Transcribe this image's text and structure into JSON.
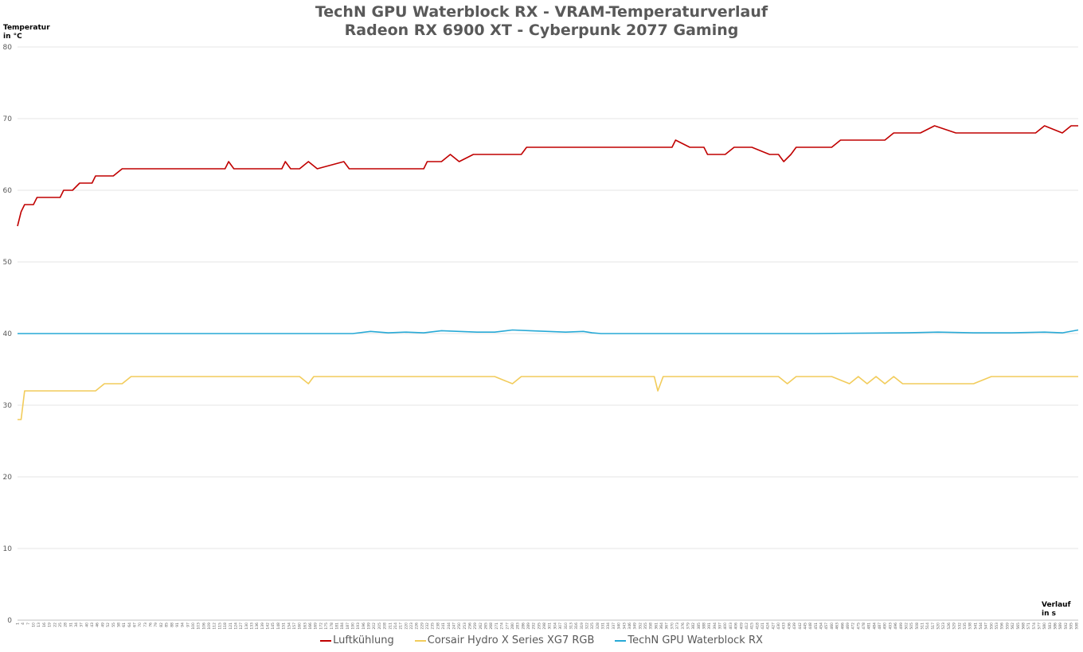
{
  "chart_data": {
    "type": "line",
    "title": "TechN GPU Waterblock RX - VRAM-Temperaturverlauf",
    "subtitle": "Radeon RX 6900 XT - Cyberpunk 2077 Gaming",
    "ylabel_line1": "Temperatur",
    "ylabel_line2": "in °C",
    "xlabel_line1": "Verlauf",
    "xlabel_line2": "in s",
    "ylim": [
      0,
      80
    ],
    "yticks": [
      "0",
      "10",
      "20",
      "30",
      "40",
      "50",
      "60",
      "70",
      "80"
    ],
    "xlim": [
      1,
      599
    ],
    "xtick_start": 1,
    "xtick_step": 3,
    "grid": true,
    "legend_position": "bottom",
    "series": [
      {
        "name": "Luftkühlung",
        "color": "#c00000",
        "points": [
          [
            1,
            55
          ],
          [
            3,
            57
          ],
          [
            5,
            58
          ],
          [
            10,
            58
          ],
          [
            12,
            59
          ],
          [
            15,
            59
          ],
          [
            25,
            59
          ],
          [
            27,
            60
          ],
          [
            30,
            60
          ],
          [
            32,
            60
          ],
          [
            36,
            61
          ],
          [
            40,
            61
          ],
          [
            43,
            61
          ],
          [
            45,
            62
          ],
          [
            50,
            62
          ],
          [
            55,
            62
          ],
          [
            60,
            63
          ],
          [
            70,
            63
          ],
          [
            80,
            63
          ],
          [
            90,
            63
          ],
          [
            100,
            63
          ],
          [
            110,
            63
          ],
          [
            118,
            63
          ],
          [
            120,
            64
          ],
          [
            123,
            63
          ],
          [
            130,
            63
          ],
          [
            150,
            63
          ],
          [
            152,
            64
          ],
          [
            155,
            63
          ],
          [
            160,
            63
          ],
          [
            165,
            64
          ],
          [
            170,
            63
          ],
          [
            185,
            64
          ],
          [
            188,
            63
          ],
          [
            230,
            63
          ],
          [
            232,
            64
          ],
          [
            240,
            64
          ],
          [
            245,
            65
          ],
          [
            250,
            64
          ],
          [
            258,
            65
          ],
          [
            270,
            65
          ],
          [
            285,
            65
          ],
          [
            288,
            66
          ],
          [
            300,
            66
          ],
          [
            305,
            66
          ],
          [
            320,
            66
          ],
          [
            330,
            66
          ],
          [
            340,
            66
          ],
          [
            345,
            66
          ],
          [
            370,
            66
          ],
          [
            372,
            67
          ],
          [
            380,
            66
          ],
          [
            388,
            66
          ],
          [
            390,
            65
          ],
          [
            400,
            65
          ],
          [
            405,
            66
          ],
          [
            415,
            66
          ],
          [
            425,
            65
          ],
          [
            430,
            65
          ],
          [
            433,
            64
          ],
          [
            437,
            65
          ],
          [
            440,
            66
          ],
          [
            445,
            66
          ],
          [
            455,
            66
          ],
          [
            460,
            66
          ],
          [
            465,
            67
          ],
          [
            480,
            67
          ],
          [
            490,
            67
          ],
          [
            495,
            68
          ],
          [
            500,
            68
          ],
          [
            510,
            68
          ],
          [
            518,
            69
          ],
          [
            530,
            68
          ],
          [
            545,
            68
          ],
          [
            560,
            68
          ],
          [
            575,
            68
          ],
          [
            580,
            69
          ],
          [
            590,
            68
          ],
          [
            595,
            69
          ],
          [
            599,
            69
          ]
        ]
      },
      {
        "name": "Corsair Hydro X Series XG7 RGB",
        "color": "#f2cc5b",
        "points": [
          [
            1,
            28
          ],
          [
            3,
            28
          ],
          [
            5,
            32
          ],
          [
            10,
            32
          ],
          [
            20,
            32
          ],
          [
            30,
            32
          ],
          [
            40,
            32
          ],
          [
            45,
            32
          ],
          [
            50,
            33
          ],
          [
            55,
            33
          ],
          [
            60,
            33
          ],
          [
            65,
            34
          ],
          [
            70,
            34
          ],
          [
            80,
            34
          ],
          [
            90,
            34
          ],
          [
            100,
            34
          ],
          [
            120,
            34
          ],
          [
            150,
            34
          ],
          [
            160,
            34
          ],
          [
            165,
            33
          ],
          [
            168,
            34
          ],
          [
            175,
            34
          ],
          [
            200,
            34
          ],
          [
            250,
            34
          ],
          [
            270,
            34
          ],
          [
            280,
            33
          ],
          [
            285,
            34
          ],
          [
            300,
            34
          ],
          [
            340,
            34
          ],
          [
            360,
            34
          ],
          [
            362,
            32
          ],
          [
            365,
            34
          ],
          [
            380,
            34
          ],
          [
            400,
            34
          ],
          [
            430,
            34
          ],
          [
            435,
            33
          ],
          [
            440,
            34
          ],
          [
            460,
            34
          ],
          [
            470,
            33
          ],
          [
            475,
            34
          ],
          [
            480,
            33
          ],
          [
            485,
            34
          ],
          [
            490,
            33
          ],
          [
            495,
            34
          ],
          [
            500,
            33
          ],
          [
            510,
            33
          ],
          [
            520,
            33
          ],
          [
            530,
            33
          ],
          [
            540,
            33
          ],
          [
            550,
            34
          ],
          [
            560,
            34
          ],
          [
            570,
            34
          ],
          [
            580,
            34
          ],
          [
            590,
            34
          ],
          [
            599,
            34
          ]
        ]
      },
      {
        "name": "TechN GPU Waterblock RX",
        "color": "#27a9d6",
        "points": [
          [
            1,
            40
          ],
          [
            50,
            40
          ],
          [
            100,
            40
          ],
          [
            150,
            40
          ],
          [
            190,
            40
          ],
          [
            200,
            40.3
          ],
          [
            210,
            40.1
          ],
          [
            220,
            40.2
          ],
          [
            230,
            40.1
          ],
          [
            240,
            40.4
          ],
          [
            250,
            40.3
          ],
          [
            260,
            40.2
          ],
          [
            270,
            40.2
          ],
          [
            280,
            40.5
          ],
          [
            290,
            40.4
          ],
          [
            300,
            40.3
          ],
          [
            310,
            40.2
          ],
          [
            320,
            40.3
          ],
          [
            325,
            40.1
          ],
          [
            330,
            40
          ],
          [
            350,
            40
          ],
          [
            400,
            40
          ],
          [
            450,
            40
          ],
          [
            500,
            40.1
          ],
          [
            520,
            40.2
          ],
          [
            540,
            40.1
          ],
          [
            560,
            40.1
          ],
          [
            580,
            40.2
          ],
          [
            590,
            40.1
          ],
          [
            599,
            40.5
          ]
        ]
      }
    ]
  }
}
